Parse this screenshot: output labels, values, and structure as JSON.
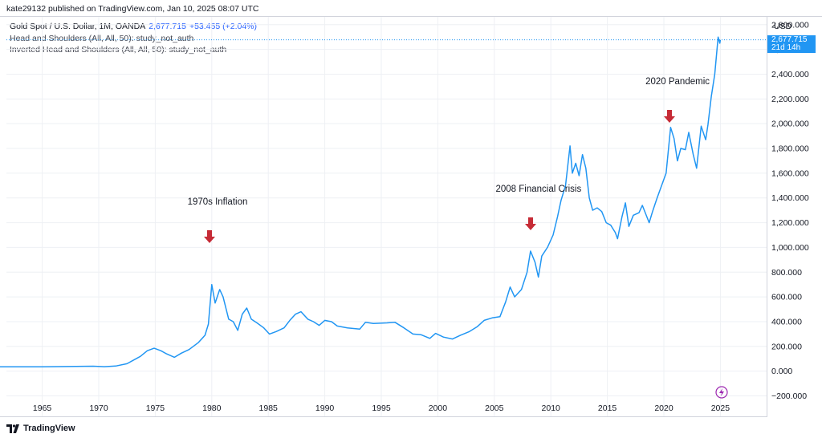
{
  "header": {
    "published": "kate29132 published on TradingView.com, Jan 10, 2025 08:07 UTC"
  },
  "legend": {
    "symbol": "Gold Spot / U.S. Dollar, 1M, OANDA",
    "price": "2,677.715",
    "change": "+53.455 (+2.04%)",
    "studies": [
      "Head and Shoulders (All, All, 50): study_not_auth",
      "Inverted Head and Shoulders (All, All, 50): study_not_auth"
    ]
  },
  "axis": {
    "currency": "USD",
    "last_price": "2,677.715",
    "countdown": "21d 14h"
  },
  "footer": {
    "brand": "TradingView"
  },
  "colors": {
    "line": "#2196f3",
    "arrow": "#c62b36",
    "bolt": "#9c27b0",
    "grid": "#eef0f4"
  },
  "chart_data": {
    "type": "line",
    "x_ticks": [
      "1965",
      "1970",
      "1975",
      "1980",
      "1985",
      "1990",
      "1995",
      "2000",
      "2005",
      "2010",
      "2015",
      "2020",
      "2025"
    ],
    "y_ticks": [
      "2,800.000",
      "2,600.000",
      "2,400.000",
      "2,200.000",
      "2,000.000",
      "1,800.000",
      "1,600.000",
      "1,400.000",
      "1,200.000",
      "1,000.000",
      "800.000",
      "600.000",
      "400.000",
      "200.000",
      "0.000",
      "−200.000"
    ],
    "ylim": [
      -200,
      2800
    ],
    "xlim": [
      1960.3,
      2029.5
    ],
    "last_value": 2677.715,
    "annotations": [
      {
        "text": "1970s Inflation",
        "x": 1979.8,
        "arrow_value": 1090
      },
      {
        "text": "2008 Financial Crisis",
        "x": 2008.2,
        "arrow_value": 1190
      },
      {
        "text": "2020 Pandemic",
        "x": 2020.5,
        "arrow_value": 2060
      }
    ],
    "series": [
      {
        "points": [
          [
            1960.3,
            35
          ],
          [
            1965,
            35
          ],
          [
            1968,
            38
          ],
          [
            1969.5,
            40
          ],
          [
            1970.5,
            36
          ],
          [
            1971.5,
            41
          ],
          [
            1972.5,
            60
          ],
          [
            1973.3,
            100
          ],
          [
            1973.7,
            120
          ],
          [
            1974.3,
            165
          ],
          [
            1974.9,
            185
          ],
          [
            1975.5,
            165
          ],
          [
            1976.0,
            140
          ],
          [
            1976.7,
            112
          ],
          [
            1977.3,
            145
          ],
          [
            1978.0,
            175
          ],
          [
            1978.8,
            230
          ],
          [
            1979.4,
            290
          ],
          [
            1979.7,
            380
          ],
          [
            1980.0,
            700
          ],
          [
            1980.3,
            550
          ],
          [
            1980.7,
            660
          ],
          [
            1981.0,
            600
          ],
          [
            1981.5,
            420
          ],
          [
            1981.9,
            400
          ],
          [
            1982.3,
            330
          ],
          [
            1982.7,
            460
          ],
          [
            1983.1,
            510
          ],
          [
            1983.5,
            420
          ],
          [
            1984.0,
            390
          ],
          [
            1984.6,
            350
          ],
          [
            1985.1,
            300
          ],
          [
            1985.7,
            320
          ],
          [
            1986.4,
            350
          ],
          [
            1986.9,
            410
          ],
          [
            1987.4,
            460
          ],
          [
            1987.9,
            480
          ],
          [
            1988.5,
            420
          ],
          [
            1989.0,
            400
          ],
          [
            1989.5,
            370
          ],
          [
            1990.0,
            410
          ],
          [
            1990.6,
            400
          ],
          [
            1991.1,
            365
          ],
          [
            1992.0,
            350
          ],
          [
            1993.1,
            340
          ],
          [
            1993.6,
            395
          ],
          [
            1994.3,
            385
          ],
          [
            1995.5,
            390
          ],
          [
            1996.2,
            395
          ],
          [
            1997.0,
            350
          ],
          [
            1997.8,
            300
          ],
          [
            1998.5,
            295
          ],
          [
            1999.3,
            265
          ],
          [
            1999.8,
            305
          ],
          [
            2000.5,
            275
          ],
          [
            2001.3,
            260
          ],
          [
            2002.0,
            290
          ],
          [
            2002.8,
            320
          ],
          [
            2003.5,
            360
          ],
          [
            2004.1,
            410
          ],
          [
            2004.8,
            430
          ],
          [
            2005.5,
            440
          ],
          [
            2006.0,
            560
          ],
          [
            2006.4,
            680
          ],
          [
            2006.8,
            600
          ],
          [
            2007.4,
            660
          ],
          [
            2007.9,
            800
          ],
          [
            2008.2,
            970
          ],
          [
            2008.6,
            880
          ],
          [
            2008.9,
            760
          ],
          [
            2009.2,
            930
          ],
          [
            2009.7,
            1000
          ],
          [
            2010.2,
            1100
          ],
          [
            2010.6,
            1250
          ],
          [
            2010.9,
            1380
          ],
          [
            2011.3,
            1500
          ],
          [
            2011.7,
            1820
          ],
          [
            2011.9,
            1600
          ],
          [
            2012.2,
            1680
          ],
          [
            2012.5,
            1580
          ],
          [
            2012.8,
            1750
          ],
          [
            2013.1,
            1640
          ],
          [
            2013.4,
            1400
          ],
          [
            2013.7,
            1300
          ],
          [
            2014.1,
            1320
          ],
          [
            2014.5,
            1290
          ],
          [
            2014.9,
            1200
          ],
          [
            2015.3,
            1180
          ],
          [
            2015.7,
            1120
          ],
          [
            2015.9,
            1070
          ],
          [
            2016.3,
            1250
          ],
          [
            2016.6,
            1360
          ],
          [
            2016.9,
            1170
          ],
          [
            2017.3,
            1260
          ],
          [
            2017.8,
            1280
          ],
          [
            2018.1,
            1340
          ],
          [
            2018.7,
            1200
          ],
          [
            2019.0,
            1290
          ],
          [
            2019.4,
            1400
          ],
          [
            2019.8,
            1500
          ],
          [
            2020.2,
            1600
          ],
          [
            2020.6,
            1970
          ],
          [
            2020.9,
            1880
          ],
          [
            2021.2,
            1700
          ],
          [
            2021.5,
            1800
          ],
          [
            2021.9,
            1790
          ],
          [
            2022.2,
            1930
          ],
          [
            2022.6,
            1750
          ],
          [
            2022.9,
            1640
          ],
          [
            2023.3,
            1980
          ],
          [
            2023.7,
            1870
          ],
          [
            2023.9,
            1990
          ],
          [
            2024.2,
            2220
          ],
          [
            2024.5,
            2400
          ],
          [
            2024.8,
            2700
          ],
          [
            2024.95,
            2650
          ],
          [
            2025.0,
            2677.715
          ]
        ]
      }
    ]
  }
}
